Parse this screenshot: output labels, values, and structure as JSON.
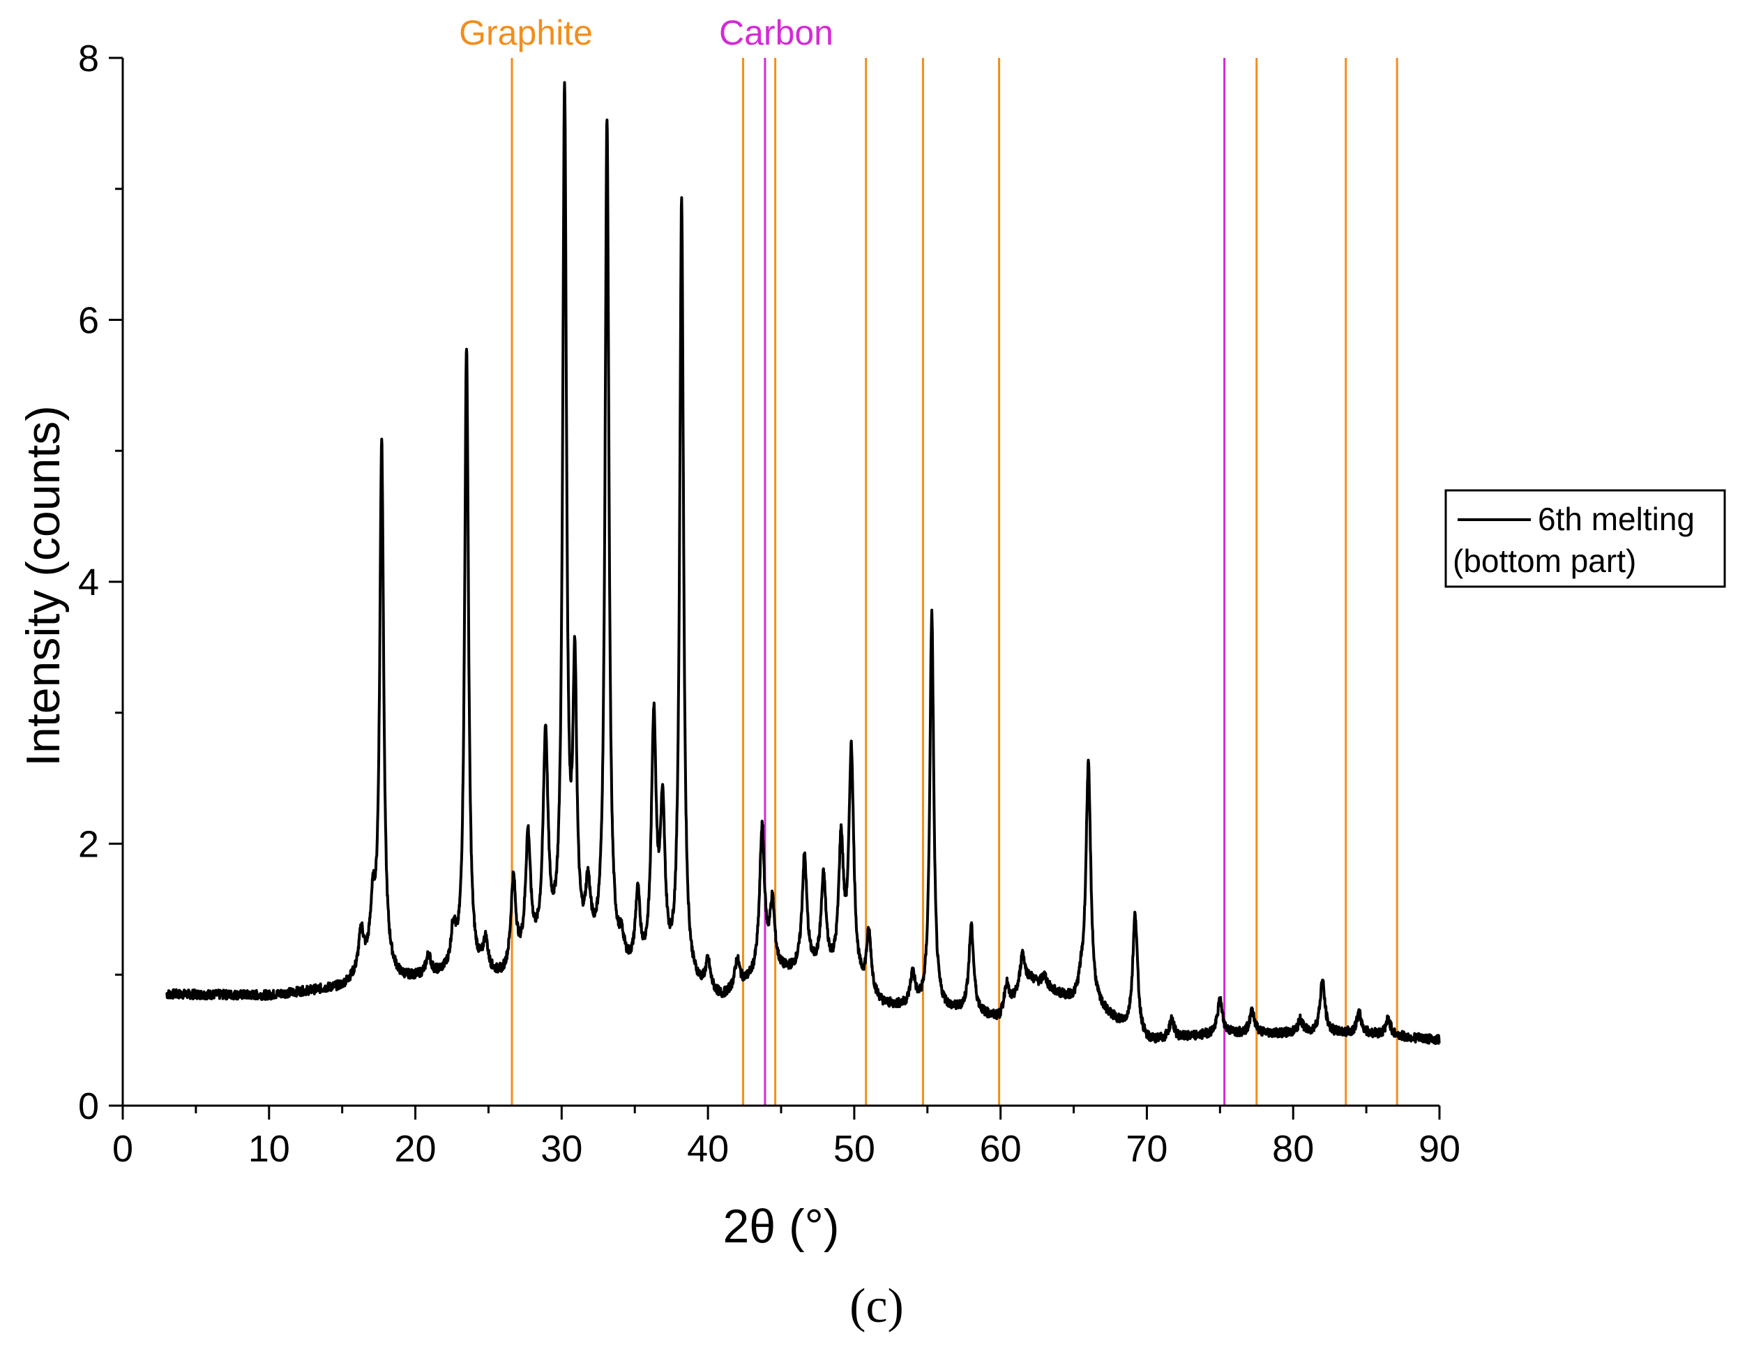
{
  "chart_data": {
    "type": "line",
    "xlabel": "2θ (°)",
    "ylabel": "Intensity (counts)",
    "xlim": [
      0,
      90
    ],
    "ylim": [
      0,
      8
    ],
    "xticks": [
      0,
      10,
      20,
      30,
      40,
      50,
      60,
      70,
      80,
      90
    ],
    "yticks": [
      0,
      2,
      4,
      6,
      8
    ],
    "grid": false,
    "legend_position": "right",
    "panel_label": "(c)",
    "series": [
      {
        "name": "6th melting (bottom part)",
        "color": "#000000",
        "baseline": [
          [
            3,
            0.85
          ],
          [
            10,
            0.84
          ],
          [
            15,
            0.9
          ],
          [
            17,
            1.05
          ],
          [
            19,
            0.95
          ],
          [
            22,
            0.98
          ],
          [
            26,
            0.95
          ],
          [
            28,
            1.1
          ],
          [
            32,
            1.1
          ],
          [
            35,
            0.95
          ],
          [
            38,
            0.9
          ],
          [
            41,
            0.8
          ],
          [
            44,
            1.0
          ],
          [
            48,
            1.0
          ],
          [
            52,
            0.75
          ],
          [
            55,
            0.72
          ],
          [
            58,
            0.7
          ],
          [
            60,
            0.65
          ],
          [
            62,
            0.95
          ],
          [
            65,
            0.78
          ],
          [
            67,
            0.7
          ],
          [
            70,
            0.48
          ],
          [
            75,
            0.55
          ],
          [
            80,
            0.55
          ],
          [
            85,
            0.55
          ],
          [
            90,
            0.5
          ]
        ],
        "peaks": [
          {
            "x": 16.3,
            "y": 1.3
          },
          {
            "x": 17.1,
            "y": 1.45
          },
          {
            "x": 17.7,
            "y": 5.05
          },
          {
            "x": 20.9,
            "y": 1.12
          },
          {
            "x": 22.6,
            "y": 1.28
          },
          {
            "x": 23.5,
            "y": 5.77
          },
          {
            "x": 24.8,
            "y": 1.2
          },
          {
            "x": 26.7,
            "y": 1.68
          },
          {
            "x": 27.7,
            "y": 2.0
          },
          {
            "x": 28.9,
            "y": 2.75
          },
          {
            "x": 30.2,
            "y": 7.65
          },
          {
            "x": 30.9,
            "y": 3.15
          },
          {
            "x": 31.8,
            "y": 1.55
          },
          {
            "x": 33.1,
            "y": 7.48
          },
          {
            "x": 34.1,
            "y": 1.15
          },
          {
            "x": 35.2,
            "y": 1.52
          },
          {
            "x": 36.3,
            "y": 2.85
          },
          {
            "x": 36.9,
            "y": 2.12
          },
          {
            "x": 38.2,
            "y": 6.85
          },
          {
            "x": 40.0,
            "y": 1.05
          },
          {
            "x": 42.0,
            "y": 1.08
          },
          {
            "x": 43.7,
            "y": 2.08
          },
          {
            "x": 44.4,
            "y": 1.5
          },
          {
            "x": 46.6,
            "y": 1.87
          },
          {
            "x": 47.9,
            "y": 1.7
          },
          {
            "x": 49.1,
            "y": 1.95
          },
          {
            "x": 49.8,
            "y": 2.65
          },
          {
            "x": 51.0,
            "y": 1.27
          },
          {
            "x": 54.0,
            "y": 0.98
          },
          {
            "x": 55.3,
            "y": 3.75
          },
          {
            "x": 58.0,
            "y": 1.35
          },
          {
            "x": 60.4,
            "y": 0.92
          },
          {
            "x": 61.5,
            "y": 1.15
          },
          {
            "x": 63.0,
            "y": 0.98
          },
          {
            "x": 65.5,
            "y": 0.88
          },
          {
            "x": 66.0,
            "y": 2.58
          },
          {
            "x": 69.2,
            "y": 1.45
          },
          {
            "x": 71.7,
            "y": 0.65
          },
          {
            "x": 75.0,
            "y": 0.8
          },
          {
            "x": 77.2,
            "y": 0.72
          },
          {
            "x": 80.5,
            "y": 0.65
          },
          {
            "x": 82.0,
            "y": 0.95
          },
          {
            "x": 84.5,
            "y": 0.7
          },
          {
            "x": 86.5,
            "y": 0.66
          }
        ]
      }
    ],
    "reference_lines": [
      {
        "phase": "Graphite",
        "color": "#f28e1c",
        "positions": [
          26.6,
          42.4,
          44.6,
          50.8,
          54.7,
          59.9,
          77.5,
          83.6,
          87.1
        ]
      },
      {
        "phase": "Carbon",
        "color": "#d42ad6",
        "positions": [
          43.9,
          75.3
        ]
      }
    ],
    "reference_labels": [
      {
        "text": "Graphite",
        "color": "#f28e1c"
      },
      {
        "text": "Carbon",
        "color": "#d42ad6"
      }
    ],
    "legend": {
      "line1": "6th melting",
      "line2": "(bottom part)"
    }
  }
}
